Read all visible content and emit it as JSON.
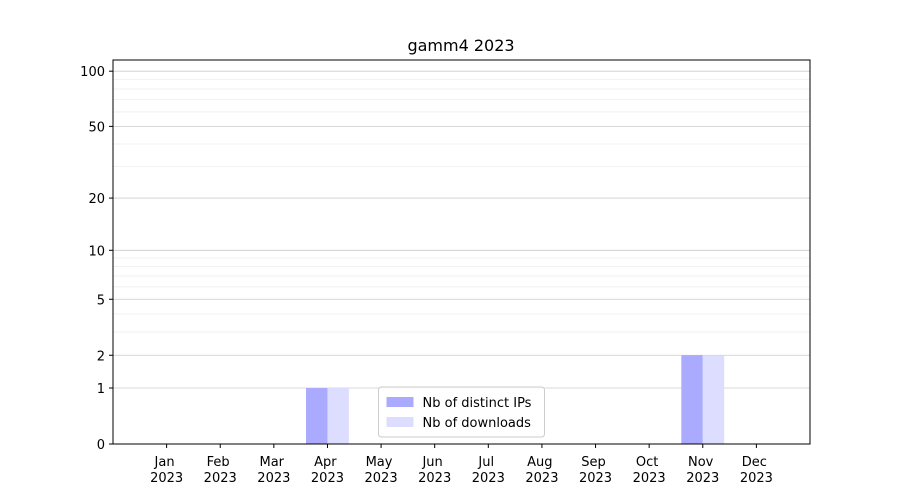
{
  "chart_data": {
    "type": "bar",
    "title": "gamm4 2023",
    "categories": [
      "Jan 2023",
      "Feb 2023",
      "Mar 2023",
      "Apr 2023",
      "May 2023",
      "Jun 2023",
      "Jul 2023",
      "Aug 2023",
      "Sep 2023",
      "Oct 2023",
      "Nov 2023",
      "Dec 2023"
    ],
    "series": [
      {
        "name": "Nb of distinct IPs",
        "color": "#aaaaff",
        "values": [
          0,
          0,
          0,
          1,
          0,
          0,
          0,
          0,
          0,
          0,
          2,
          0
        ]
      },
      {
        "name": "Nb of downloads",
        "color": "#ddddff",
        "values": [
          0,
          0,
          0,
          1,
          0,
          0,
          0,
          0,
          0,
          0,
          2,
          0
        ]
      }
    ],
    "yscale": "log1p",
    "ylim": [
      0,
      115
    ],
    "yticks": [
      0,
      1,
      2,
      5,
      10,
      20,
      50,
      100
    ],
    "yticks_minor": [
      3,
      4,
      6,
      7,
      8,
      9,
      30,
      40,
      60,
      70,
      80,
      90
    ],
    "grid": true,
    "legend": "lower center"
  }
}
